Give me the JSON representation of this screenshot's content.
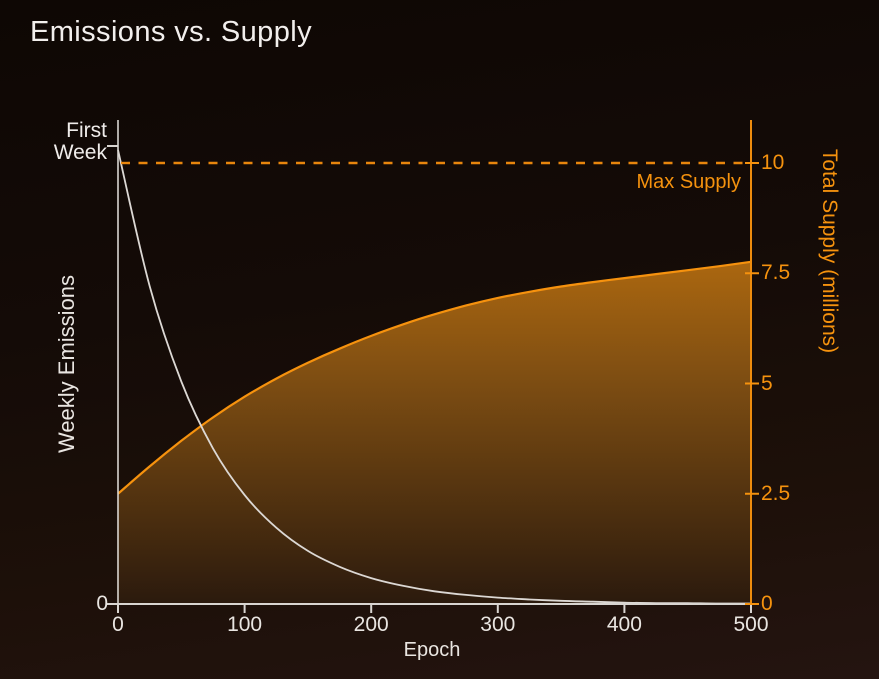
{
  "title": "Emissions vs. Supply",
  "colors": {
    "accent_orange": "#f5920e",
    "dashed_orange": "#e8860d",
    "supply_line": "#f6920e",
    "emissions_line": "#dcd8d4",
    "axis_white": "#d9d5d1",
    "text_white": "#efecea",
    "area_fill_top": "#ab6710",
    "area_fill_bottom": "#2b1a0d",
    "background_top": "#0e0704",
    "background_bottom": "#241410"
  },
  "chart_data": {
    "type": "line",
    "title": "Emissions vs. Supply",
    "xlabel": "Epoch",
    "xlim": [
      0,
      500
    ],
    "x_ticks": [
      0,
      100,
      200,
      300,
      400,
      500
    ],
    "grid": false,
    "legend": "none",
    "left_axis": {
      "label": "Weekly Emissions",
      "top_tick_label": "First Week",
      "bottom_tick_label": "0"
    },
    "right_axis": {
      "label": "Total Supply (millions)",
      "ticks": [
        "0",
        "2.5",
        "5",
        "7.5",
        "10"
      ],
      "tick_values": [
        0,
        2.5,
        5,
        7.5,
        10
      ],
      "lim": [
        0,
        11
      ]
    },
    "annotations": [
      {
        "type": "dashed-hline",
        "label": "Max Supply",
        "value": 10,
        "axis": "right"
      }
    ],
    "series": [
      {
        "name": "Weekly Emissions",
        "style": "line",
        "axis": "left",
        "color": "#dcd8d4",
        "x": [
          0,
          25,
          50,
          75,
          100,
          125,
          150,
          175,
          200,
          225,
          250,
          275,
          300,
          325,
          350,
          375,
          400,
          425,
          450,
          475,
          500
        ],
        "values": [
          1.0,
          0.7,
          0.49,
          0.343,
          0.24,
          0.168,
          0.117,
          0.082,
          0.057,
          0.04,
          0.028,
          0.02,
          0.014,
          0.01,
          0.007,
          0.005,
          0.003,
          0.002,
          0.002,
          0.001,
          0.001
        ]
      },
      {
        "name": "Total Supply",
        "style": "area",
        "axis": "right",
        "color": "#f6920e",
        "x": [
          0,
          25,
          50,
          75,
          100,
          125,
          150,
          175,
          200,
          225,
          250,
          275,
          300,
          325,
          350,
          375,
          400,
          425,
          450,
          475,
          500
        ],
        "values": [
          2.5,
          3.12,
          3.7,
          4.23,
          4.7,
          5.11,
          5.47,
          5.79,
          6.08,
          6.34,
          6.57,
          6.77,
          6.94,
          7.08,
          7.2,
          7.3,
          7.39,
          7.48,
          7.57,
          7.66,
          7.76
        ]
      }
    ]
  }
}
